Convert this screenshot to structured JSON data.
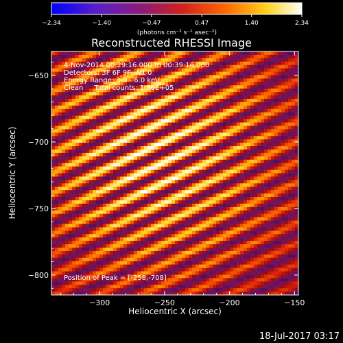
{
  "colorbar": {
    "tick_labels": [
      "-2.34",
      "-1.40",
      "-0.47",
      "0.47",
      "1.40",
      "2.34"
    ],
    "unit_label": "(photons cm⁻² s⁻¹ asec⁻²)",
    "range": [
      -2.34,
      2.34
    ]
  },
  "chart_data": {
    "type": "heatmap",
    "title": "Reconstructed RHESSI Image",
    "xlabel": "Heliocentric X (arcsec)",
    "ylabel": "Heliocentric Y (arcsec)",
    "xlim": [
      -337,
      -147
    ],
    "ylim": [
      -815,
      -632
    ],
    "x_ticks": [
      -300,
      -250,
      -200,
      -150
    ],
    "y_ticks": [
      -650,
      -700,
      -750,
      -800
    ],
    "x_tick_labels": [
      "−300",
      "−250",
      "−200",
      "−150"
    ],
    "y_tick_labels": [
      "−650",
      "−700",
      "−750",
      "−800"
    ],
    "colormap": "hot (red-temperature)",
    "value_range": [
      -2.34,
      2.34
    ],
    "peak": {
      "x": -258,
      "y": -708
    },
    "annotations": {
      "time_range": "4-Nov-2014 00:29:16.000 to 00:39:16.000",
      "detectors": "Detectors: 3F 6F 9F, Att 0",
      "energy": "Energy Range: 3.0 - 6.0 keV",
      "method": "Clean     Total counts: 1.50E+05",
      "peak_label": "Position of Peak = [-258,-708]"
    }
  },
  "footer": {
    "date": "18-Jul-2017 03:17"
  }
}
